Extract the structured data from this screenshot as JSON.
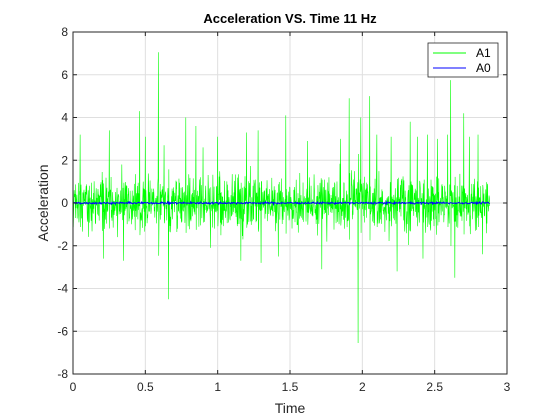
{
  "chart_data": {
    "type": "line",
    "title": "Acceleration VS. Time 11 Hz",
    "xlabel": "Time",
    "ylabel": "Acceleration",
    "xlim": [
      0,
      3
    ],
    "ylim": [
      -8,
      8
    ],
    "xticks": [
      0,
      0.5,
      1,
      1.5,
      2,
      2.5,
      3
    ],
    "yticks": [
      -8,
      -6,
      -4,
      -2,
      0,
      2,
      4,
      6,
      8
    ],
    "xtick_labels": [
      "0",
      "0.5",
      "1",
      "1.5",
      "2",
      "2.5",
      "3"
    ],
    "ytick_labels": [
      "-8",
      "-6",
      "-4",
      "-2",
      "0",
      "2",
      "4",
      "6",
      "8"
    ],
    "grid": true,
    "legend_position": "top-right",
    "series": [
      {
        "name": "A1",
        "color": "#00ff00",
        "x_start": 0,
        "x_end": 2.88,
        "typical_amplitude": 1.6,
        "peaks": [
          [
            0.59,
            7.05
          ],
          [
            0.66,
            -4.5
          ],
          [
            0.05,
            3.2
          ],
          [
            0.21,
            -2.6
          ],
          [
            0.25,
            3.4
          ],
          [
            0.35,
            -2.7
          ],
          [
            0.46,
            4.3
          ],
          [
            0.5,
            3.1
          ],
          [
            0.63,
            2.7
          ],
          [
            0.78,
            4.0
          ],
          [
            0.85,
            3.6
          ],
          [
            0.9,
            2.6
          ],
          [
            1.0,
            3.1
          ],
          [
            1.16,
            -2.7
          ],
          [
            1.2,
            3.3
          ],
          [
            1.28,
            3.4
          ],
          [
            1.3,
            -2.8
          ],
          [
            1.47,
            4.1
          ],
          [
            1.62,
            2.9
          ],
          [
            1.72,
            -3.1
          ],
          [
            1.85,
            3.0
          ],
          [
            1.91,
            4.9
          ],
          [
            1.97,
            -6.55
          ],
          [
            1.99,
            4.0
          ],
          [
            2.05,
            5.0
          ],
          [
            2.1,
            3.2
          ],
          [
            2.2,
            3.1
          ],
          [
            2.24,
            -3.2
          ],
          [
            2.33,
            3.8
          ],
          [
            2.38,
            3.1
          ],
          [
            2.45,
            3.2
          ],
          [
            2.52,
            3.0
          ],
          [
            2.59,
            3.2
          ],
          [
            2.61,
            5.75
          ],
          [
            2.64,
            -3.5
          ],
          [
            2.7,
            4.2
          ],
          [
            2.74,
            3.1
          ],
          [
            2.8,
            3.2
          ],
          [
            2.83,
            -2.4
          ],
          [
            1.42,
            -2.5
          ],
          [
            0.95,
            -2.1
          ],
          [
            2.42,
            -2.6
          ]
        ]
      },
      {
        "name": "A0",
        "color": "#0000ff",
        "x_start": 0,
        "x_end": 2.88,
        "value": 0,
        "typical_amplitude": 0.05
      }
    ]
  }
}
